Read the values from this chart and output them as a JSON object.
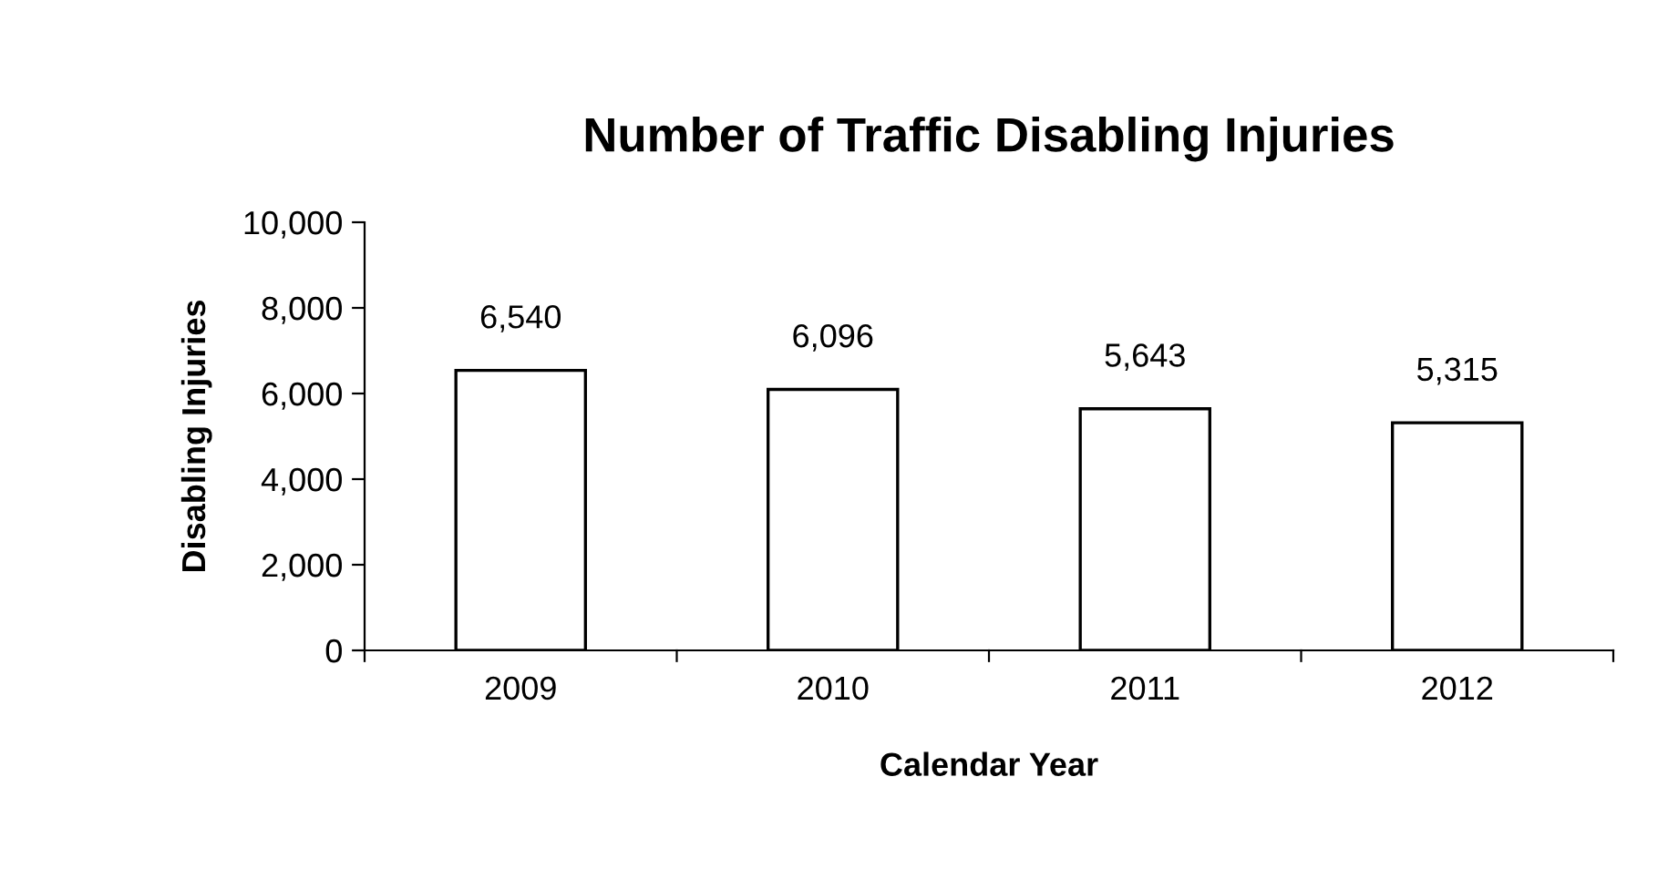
{
  "chart_data": {
    "type": "bar",
    "title": "Number of Traffic Disabling Injuries",
    "xlabel": "Calendar Year",
    "ylabel": "Disabling Injuries",
    "categories": [
      "2009",
      "2010",
      "2011",
      "2012"
    ],
    "values": [
      6540,
      6096,
      5643,
      5315
    ],
    "color": "#ffffff",
    "ylim": [
      0,
      10000
    ],
    "yticks": [
      0,
      {
        "value": 2000,
        "label": "2,000"
      },
      {
        "value": 4000,
        "label": "4,000"
      },
      {
        "value": 6000,
        "label": "6,000"
      },
      {
        "value": 8000,
        "label": "8,000"
      },
      {
        "value": 10000,
        "label": "10,000"
      }
    ],
    "value_labels": [
      "6,540",
      "6,096",
      "5,643",
      "5,315"
    ],
    "grid": false,
    "legend": false
  }
}
